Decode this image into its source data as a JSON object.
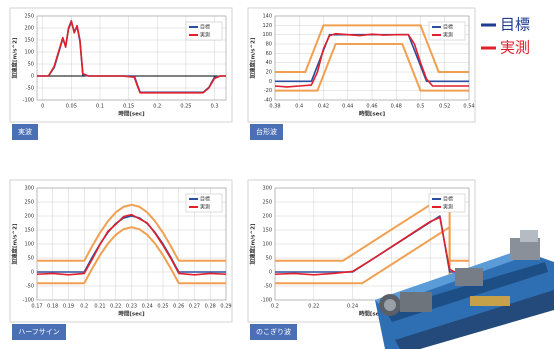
{
  "chart_data": [
    {
      "type": "line",
      "label": "実波",
      "xlabel": "時間[sec]",
      "ylabel": "加速度[m/s^2]",
      "grid": true,
      "zero_line": true,
      "xlim": [
        -0.01,
        0.32
      ],
      "ylim": [
        -100,
        250
      ],
      "xticks": [
        0,
        0.05,
        0.1,
        0.15,
        0.2,
        0.25,
        0.3
      ],
      "yticks": [
        -100,
        -50,
        0,
        50,
        100,
        150,
        200,
        250
      ],
      "series": [
        {
          "name": "目標",
          "color": "#2b4fa0",
          "x": [
            -0.01,
            0,
            0.01,
            0.02,
            0.03,
            0.035,
            0.04,
            0.045,
            0.05,
            0.055,
            0.06,
            0.065,
            0.07,
            0.08,
            0.1,
            0.12,
            0.14,
            0.16,
            0.165,
            0.17,
            0.2,
            0.25,
            0.28,
            0.29,
            0.3,
            0.31,
            0.32
          ],
          "values": [
            0,
            0,
            0,
            35,
            115,
            155,
            125,
            195,
            225,
            185,
            205,
            145,
            5,
            0,
            0,
            0,
            0,
            0,
            -35,
            -68,
            -68,
            -68,
            -68,
            -48,
            -5,
            0,
            0
          ]
        },
        {
          "name": "実測",
          "color": "#e0202a",
          "x": [
            -0.01,
            0,
            0.01,
            0.02,
            0.03,
            0.035,
            0.04,
            0.045,
            0.05,
            0.055,
            0.06,
            0.065,
            0.07,
            0.08,
            0.1,
            0.12,
            0.14,
            0.16,
            0.165,
            0.17,
            0.2,
            0.25,
            0.28,
            0.29,
            0.3,
            0.31,
            0.32
          ],
          "values": [
            0,
            0,
            0,
            40,
            120,
            160,
            120,
            200,
            230,
            180,
            210,
            150,
            10,
            0,
            0,
            0,
            0,
            -5,
            -40,
            -70,
            -70,
            -70,
            -70,
            -50,
            -10,
            0,
            0
          ]
        }
      ],
      "bounds": []
    },
    {
      "type": "line",
      "label": "台形波",
      "xlabel": "時間[sec]",
      "ylabel": "加速度[m/s^2]",
      "grid": true,
      "zero_line": false,
      "xlim": [
        0.38,
        0.54
      ],
      "ylim": [
        -40,
        140
      ],
      "xticks": [
        0.38,
        0.4,
        0.42,
        0.44,
        0.46,
        0.48,
        0.5,
        0.52,
        0.54
      ],
      "yticks": [
        -40,
        -20,
        0,
        20,
        40,
        60,
        80,
        100,
        120,
        140
      ],
      "series": [
        {
          "name": "目標",
          "color": "#2b4fa0",
          "x": [
            0.38,
            0.41,
            0.425,
            0.49,
            0.505,
            0.54
          ],
          "values": [
            0,
            0,
            100,
            100,
            0,
            0
          ]
        },
        {
          "name": "実測",
          "color": "#e0202a",
          "x": [
            0.38,
            0.39,
            0.4,
            0.41,
            0.415,
            0.42,
            0.425,
            0.43,
            0.44,
            0.45,
            0.46,
            0.47,
            0.48,
            0.49,
            0.495,
            0.5,
            0.505,
            0.51,
            0.52,
            0.53,
            0.54
          ],
          "values": [
            -10,
            -12,
            -10,
            -8,
            20,
            70,
            98,
            102,
            100,
            98,
            101,
            99,
            100,
            100,
            80,
            40,
            5,
            -10,
            -10,
            -10,
            -10
          ]
        }
      ],
      "bounds": [
        {
          "color": "#f0a050",
          "x": [
            0.38,
            0.405,
            0.42,
            0.5,
            0.515,
            0.54
          ],
          "values": [
            20,
            20,
            120,
            120,
            20,
            20
          ]
        },
        {
          "color": "#f0a050",
          "x": [
            0.38,
            0.415,
            0.43,
            0.485,
            0.5,
            0.54
          ],
          "values": [
            -20,
            -20,
            80,
            80,
            -20,
            -20
          ]
        }
      ]
    },
    {
      "type": "line",
      "label": "ハーフサイン",
      "xlabel": "時間[sec]",
      "ylabel": "加速度[m/s^2]",
      "grid": true,
      "zero_line": false,
      "xlim": [
        0.17,
        0.29
      ],
      "ylim": [
        -100,
        300
      ],
      "xticks": [
        0.17,
        0.18,
        0.19,
        0.2,
        0.21,
        0.22,
        0.23,
        0.24,
        0.25,
        0.26,
        0.27,
        0.28,
        0.29
      ],
      "yticks": [
        -100,
        -50,
        0,
        50,
        100,
        150,
        200,
        250,
        300
      ],
      "series": [
        {
          "name": "目標",
          "color": "#2b4fa0",
          "x": [
            0.17,
            0.18,
            0.19,
            0.2,
            0.205,
            0.21,
            0.215,
            0.22,
            0.225,
            0.23,
            0.235,
            0.24,
            0.245,
            0.25,
            0.255,
            0.26,
            0.27,
            0.28,
            0.29
          ],
          "values": [
            0,
            0,
            0,
            0,
            52,
            100,
            141,
            173,
            193,
            200,
            193,
            173,
            141,
            100,
            52,
            0,
            0,
            0,
            0
          ]
        },
        {
          "name": "実測",
          "color": "#e0202a",
          "x": [
            0.17,
            0.18,
            0.19,
            0.2,
            0.205,
            0.21,
            0.215,
            0.22,
            0.225,
            0.23,
            0.235,
            0.24,
            0.245,
            0.25,
            0.255,
            0.26,
            0.27,
            0.28,
            0.29
          ],
          "values": [
            -8,
            -5,
            -10,
            -5,
            45,
            98,
            145,
            170,
            198,
            205,
            190,
            175,
            138,
            95,
            48,
            -5,
            -10,
            -5,
            -8
          ]
        }
      ],
      "bounds": [
        {
          "color": "#f0a050",
          "x": [
            0.17,
            0.18,
            0.19,
            0.2,
            0.205,
            0.21,
            0.215,
            0.22,
            0.225,
            0.23,
            0.235,
            0.24,
            0.245,
            0.25,
            0.255,
            0.26,
            0.27,
            0.28,
            0.29
          ],
          "values": [
            40,
            40,
            40,
            40,
            92,
            140,
            181,
            213,
            233,
            240,
            233,
            213,
            181,
            140,
            92,
            40,
            40,
            40,
            40
          ]
        },
        {
          "color": "#f0a050",
          "x": [
            0.17,
            0.18,
            0.19,
            0.2,
            0.205,
            0.21,
            0.215,
            0.22,
            0.225,
            0.23,
            0.235,
            0.24,
            0.245,
            0.25,
            0.255,
            0.26,
            0.27,
            0.28,
            0.29
          ],
          "values": [
            -40,
            -40,
            -40,
            -40,
            12,
            60,
            101,
            133,
            153,
            160,
            153,
            133,
            101,
            60,
            12,
            -40,
            -40,
            -40,
            -40
          ]
        }
      ]
    },
    {
      "type": "line",
      "label": "のこぎり波",
      "xlabel": "時間[sec]",
      "ylabel": "加速度[m/s^2]",
      "grid": true,
      "zero_line": false,
      "xlim": [
        0.2,
        0.3
      ],
      "ylim": [
        -100,
        300
      ],
      "xticks": [
        0.2,
        0.22,
        0.24,
        0.26,
        0.28,
        0.3
      ],
      "yticks": [
        -100,
        -50,
        0,
        50,
        100,
        150,
        200,
        250,
        300
      ],
      "series": [
        {
          "name": "目標",
          "color": "#2b4fa0",
          "x": [
            0.2,
            0.24,
            0.285,
            0.29,
            0.3
          ],
          "values": [
            0,
            0,
            200,
            0,
            0
          ]
        },
        {
          "name": "実測",
          "color": "#e0202a",
          "x": [
            0.2,
            0.21,
            0.22,
            0.23,
            0.24,
            0.25,
            0.26,
            0.27,
            0.28,
            0.285,
            0.29,
            0.295,
            0.3
          ],
          "values": [
            -8,
            -5,
            -10,
            -5,
            2,
            45,
            90,
            135,
            180,
            195,
            10,
            -10,
            -5
          ]
        }
      ],
      "bounds": [
        {
          "color": "#f0a050",
          "x": [
            0.2,
            0.235,
            0.28,
            0.29,
            0.29,
            0.3
          ],
          "values": [
            40,
            40,
            240,
            240,
            40,
            40
          ]
        },
        {
          "color": "#f0a050",
          "x": [
            0.2,
            0.245,
            0.29,
            0.29,
            0.3
          ],
          "values": [
            -40,
            -40,
            160,
            -40,
            -40
          ]
        }
      ]
    }
  ],
  "legend": {
    "items": [
      {
        "name": "目標",
        "color": "#1f3c8f"
      },
      {
        "name": "実測",
        "color": "#e0202a"
      }
    ]
  }
}
